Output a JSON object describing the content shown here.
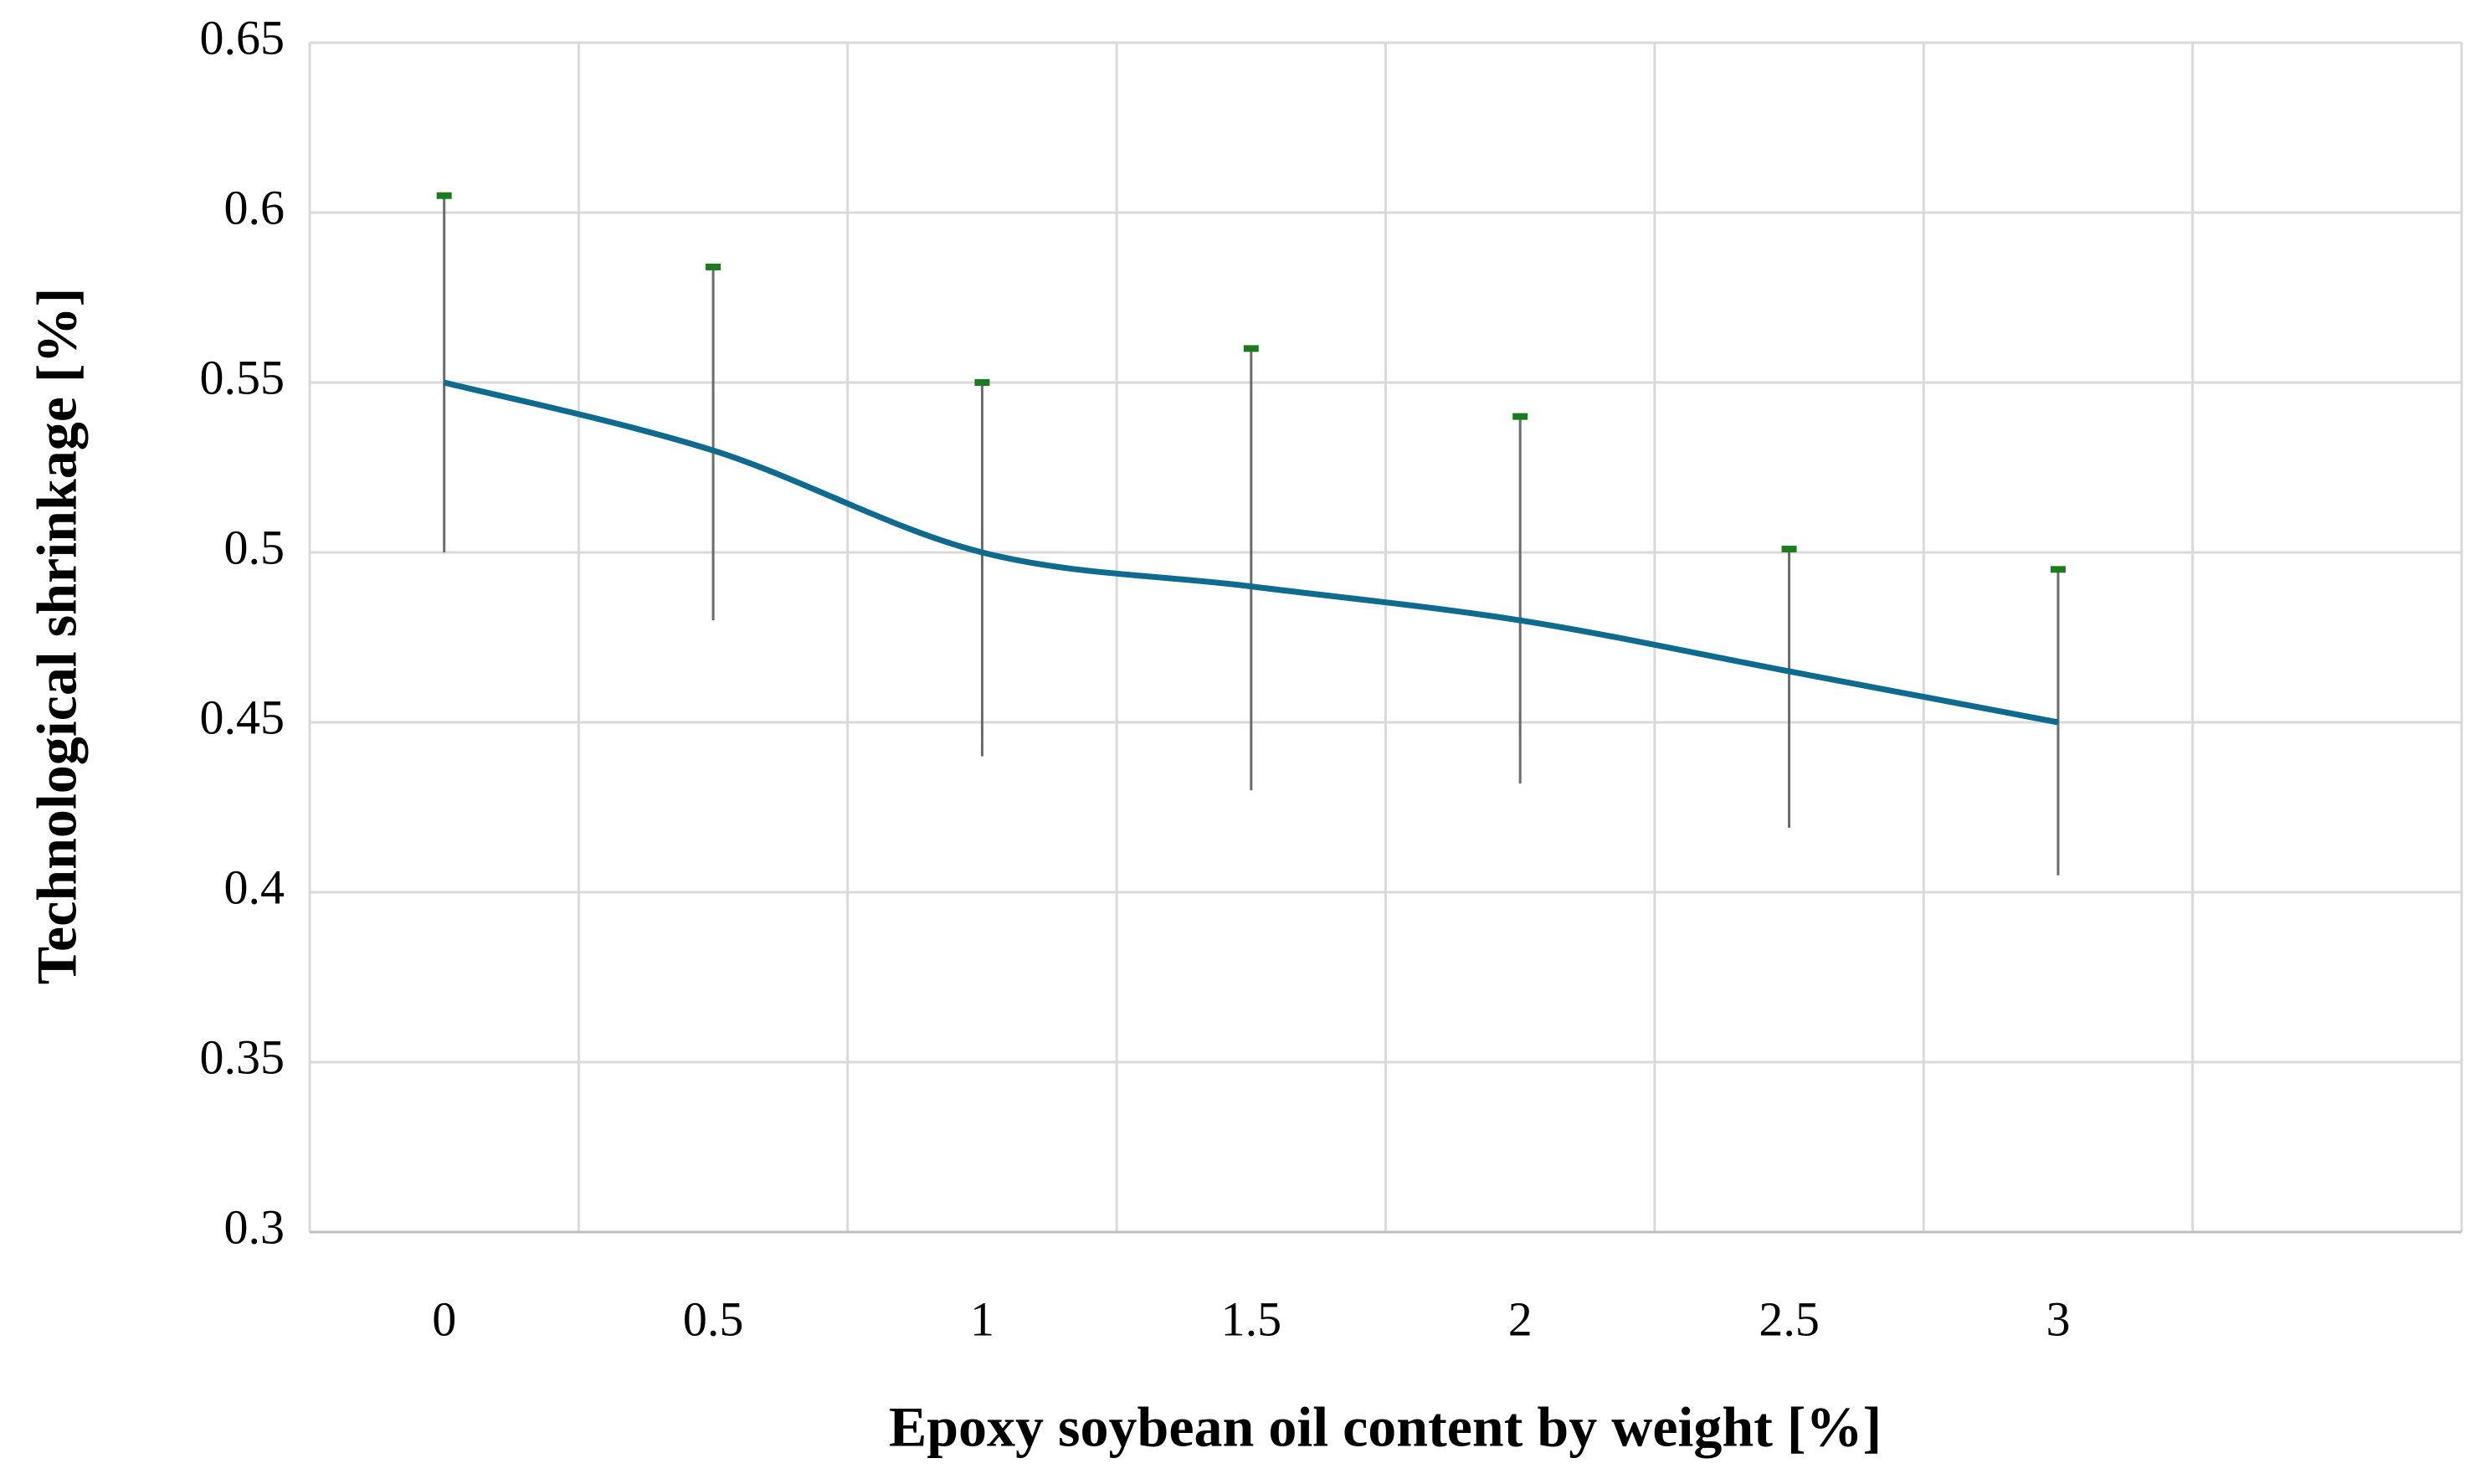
{
  "chart_data": {
    "type": "line",
    "x_label": "Epoxy soybean oil content by weight [%]",
    "y_label": "Technological shrinkage [%]",
    "categories": [
      "0",
      "0.5",
      "1",
      "1.5",
      "2",
      "2.5",
      "3",
      null
    ],
    "values": [
      0.55,
      0.53,
      0.5,
      0.49,
      0.48,
      0.465,
      0.45,
      null
    ],
    "error_plus": [
      0.055,
      0.054,
      0.05,
      0.07,
      0.06,
      0.036,
      0.045,
      null
    ],
    "error_minus": [
      0.05,
      0.05,
      0.06,
      0.06,
      0.048,
      0.046,
      0.045,
      null
    ],
    "color": "#0e6b8f",
    "error_color": "#6b6b6b",
    "cap_color": "#1e7a1e",
    "smooth": true,
    "ylim": [
      0.3,
      0.65
    ],
    "yticks": [
      0.3,
      0.35,
      0.4,
      0.45,
      0.5,
      0.55,
      0.6,
      0.65
    ],
    "grid": true
  }
}
